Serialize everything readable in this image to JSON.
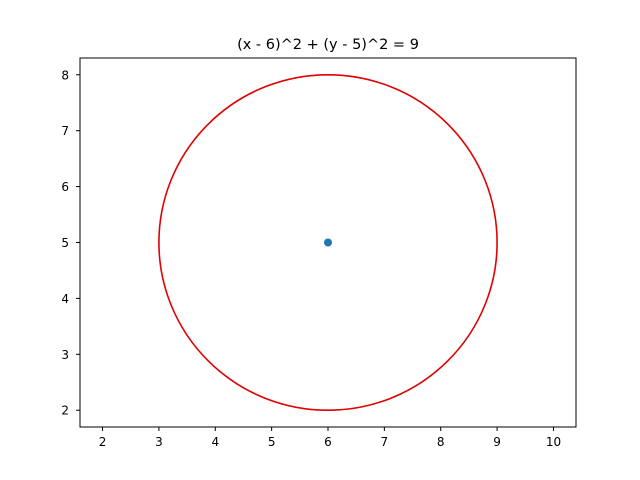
{
  "chart_data": {
    "type": "scatter",
    "title": "(x - 6)^2 + (y - 5)^2 = 9",
    "xlabel": "",
    "ylabel": "",
    "xlim": [
      1.6,
      10.4
    ],
    "ylim": [
      1.7,
      8.3
    ],
    "xticks": [
      2,
      3,
      4,
      5,
      6,
      7,
      8,
      9,
      10
    ],
    "yticks": [
      2,
      3,
      4,
      5,
      6,
      7,
      8
    ],
    "grid": false,
    "circle": {
      "center": [
        6,
        5
      ],
      "radius": 3,
      "color": "#e00000"
    },
    "points": [
      {
        "x": 6,
        "y": 5,
        "color": "#1f77b4"
      }
    ]
  }
}
